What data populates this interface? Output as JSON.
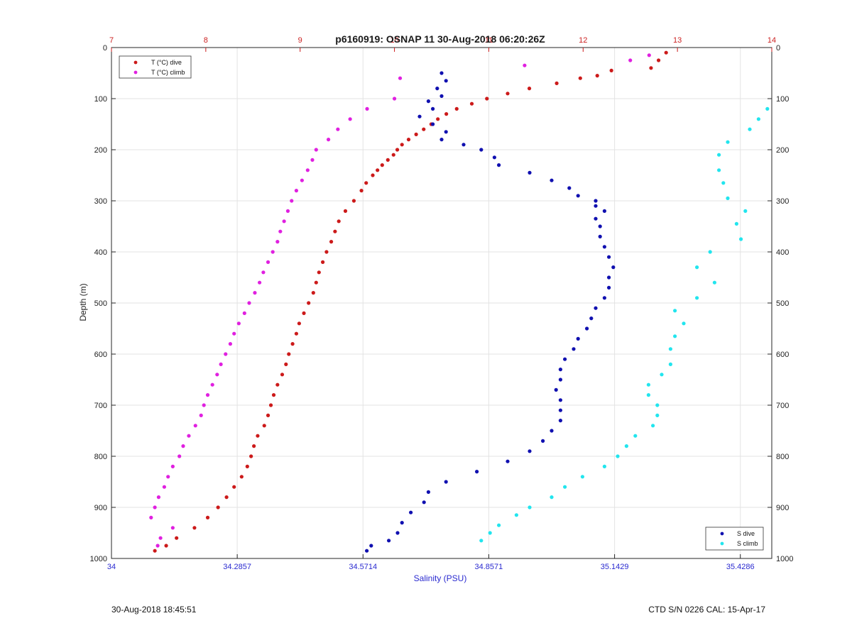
{
  "chart_data": {
    "type": "scatter",
    "title": "p6160919: OSNAP 11 30-Aug-2018 06:20:26Z",
    "xlabel": "Salinity (PSU)",
    "ylabel": "Depth (m)",
    "xlim": [
      34,
      35.5
    ],
    "x_top_lim": [
      7,
      14
    ],
    "ylim": [
      0,
      1000
    ],
    "y_reversed": true,
    "grid": true,
    "x_ticks": [
      34,
      34.2857,
      34.5714,
      34.8571,
      35.1429,
      35.4286
    ],
    "x_tick_labels": [
      "34",
      "34.2857",
      "34.5714",
      "34.8571",
      "35.1429",
      "35.4286"
    ],
    "x_top_ticks": [
      7,
      8,
      9,
      10,
      11,
      12,
      13,
      14
    ],
    "x_top_tick_labels": [
      "7",
      "8",
      "9",
      "10",
      "11",
      "12",
      "13",
      "14"
    ],
    "y_ticks": [
      0,
      100,
      200,
      300,
      400,
      500,
      600,
      700,
      800,
      900,
      1000
    ],
    "y_tick_labels": [
      "0",
      "100",
      "200",
      "300",
      "400",
      "500",
      "600",
      "700",
      "800",
      "900",
      "1000"
    ],
    "legends": [
      {
        "placement": "top-left",
        "entries": [
          "T (°C) dive",
          "T (°C) climb"
        ]
      },
      {
        "placement": "bottom-right",
        "entries": [
          "S dive",
          "S climb"
        ]
      }
    ],
    "series": [
      {
        "name": "T (°C) dive",
        "axis": "top",
        "color": "#cc1a1a",
        "depth": [
          10,
          25,
          40,
          45,
          55,
          60,
          70,
          80,
          90,
          100,
          110,
          120,
          130,
          140,
          150,
          160,
          170,
          180,
          190,
          200,
          210,
          220,
          230,
          240,
          250,
          265,
          280,
          300,
          320,
          340,
          360,
          380,
          400,
          420,
          440,
          460,
          480,
          500,
          520,
          540,
          560,
          580,
          600,
          620,
          640,
          660,
          680,
          700,
          720,
          740,
          760,
          780,
          800,
          820,
          840,
          860,
          880,
          900,
          920,
          940,
          960,
          975,
          985
        ],
        "x": [
          12.88,
          12.8,
          12.72,
          12.3,
          12.15,
          11.97,
          11.72,
          11.43,
          11.2,
          10.98,
          10.82,
          10.66,
          10.55,
          10.46,
          10.39,
          10.31,
          10.23,
          10.15,
          10.08,
          10.03,
          9.99,
          9.93,
          9.87,
          9.82,
          9.77,
          9.7,
          9.65,
          9.57,
          9.48,
          9.41,
          9.37,
          9.33,
          9.28,
          9.24,
          9.2,
          9.17,
          9.14,
          9.09,
          9.04,
          8.99,
          8.96,
          8.92,
          8.88,
          8.85,
          8.81,
          8.76,
          8.72,
          8.69,
          8.66,
          8.62,
          8.55,
          8.51,
          8.48,
          8.44,
          8.38,
          8.3,
          8.22,
          8.13,
          8.02,
          7.88,
          7.69,
          7.58,
          7.46
        ]
      },
      {
        "name": "T (°C) climb",
        "axis": "top",
        "color": "#e020e0",
        "depth": [
          15,
          25,
          35,
          60,
          100,
          120,
          140,
          160,
          180,
          200,
          220,
          240,
          260,
          280,
          300,
          320,
          340,
          360,
          380,
          400,
          420,
          440,
          460,
          480,
          500,
          520,
          540,
          560,
          580,
          600,
          620,
          640,
          660,
          680,
          700,
          720,
          740,
          760,
          780,
          800,
          820,
          840,
          860,
          880,
          900,
          920,
          940,
          960,
          975
        ],
        "x": [
          12.7,
          12.5,
          11.38,
          10.06,
          10.0,
          9.71,
          9.53,
          9.4,
          9.3,
          9.17,
          9.13,
          9.08,
          9.02,
          8.96,
          8.91,
          8.87,
          8.83,
          8.79,
          8.76,
          8.71,
          8.66,
          8.61,
          8.57,
          8.52,
          8.46,
          8.41,
          8.35,
          8.3,
          8.26,
          8.21,
          8.16,
          8.12,
          8.07,
          8.02,
          7.98,
          7.95,
          7.89,
          7.82,
          7.76,
          7.72,
          7.65,
          7.6,
          7.56,
          7.5,
          7.46,
          7.42,
          7.65,
          7.52,
          7.49
        ]
      },
      {
        "name": "S dive",
        "axis": "bottom",
        "color": "#1010b0",
        "depth": [
          50,
          65,
          80,
          95,
          105,
          120,
          135,
          150,
          165,
          180,
          190,
          200,
          215,
          230,
          245,
          260,
          275,
          290,
          300,
          310,
          320,
          335,
          350,
          370,
          390,
          410,
          430,
          450,
          470,
          490,
          510,
          530,
          550,
          570,
          590,
          610,
          630,
          650,
          670,
          690,
          710,
          730,
          750,
          770,
          790,
          810,
          830,
          850,
          870,
          890,
          910,
          930,
          950,
          965,
          975,
          985
        ],
        "x": [
          34.75,
          34.76,
          34.74,
          34.75,
          34.72,
          34.73,
          34.7,
          34.73,
          34.76,
          34.75,
          34.8,
          34.84,
          34.87,
          34.88,
          34.95,
          35.0,
          35.04,
          35.06,
          35.1,
          35.1,
          35.12,
          35.1,
          35.11,
          35.11,
          35.12,
          35.13,
          35.14,
          35.13,
          35.13,
          35.12,
          35.1,
          35.09,
          35.08,
          35.06,
          35.05,
          35.03,
          35.02,
          35.02,
          35.01,
          35.02,
          35.02,
          35.02,
          35.0,
          34.98,
          34.95,
          34.9,
          34.83,
          34.76,
          34.72,
          34.71,
          34.68,
          34.66,
          34.65,
          34.63,
          34.59,
          34.58
        ]
      },
      {
        "name": "S climb",
        "axis": "bottom",
        "color": "#22e5ee",
        "depth": [
          120,
          140,
          160,
          185,
          210,
          240,
          265,
          295,
          320,
          345,
          375,
          400,
          430,
          460,
          490,
          515,
          540,
          565,
          590,
          620,
          640,
          660,
          680,
          700,
          720,
          740,
          760,
          780,
          800,
          820,
          840,
          860,
          880,
          900,
          915,
          935,
          950,
          965
        ],
        "x": [
          35.49,
          35.47,
          35.45,
          35.4,
          35.38,
          35.38,
          35.39,
          35.4,
          35.44,
          35.42,
          35.43,
          35.36,
          35.33,
          35.37,
          35.33,
          35.28,
          35.3,
          35.28,
          35.27,
          35.27,
          35.25,
          35.22,
          35.22,
          35.24,
          35.24,
          35.23,
          35.19,
          35.17,
          35.15,
          35.12,
          35.07,
          35.03,
          35.0,
          34.95,
          34.92,
          34.88,
          34.86,
          34.84
        ]
      }
    ]
  },
  "footer": {
    "left": "30-Aug-2018 18:45:51",
    "right": "CTD S/N 0226  CAL: 15-Apr-17"
  }
}
